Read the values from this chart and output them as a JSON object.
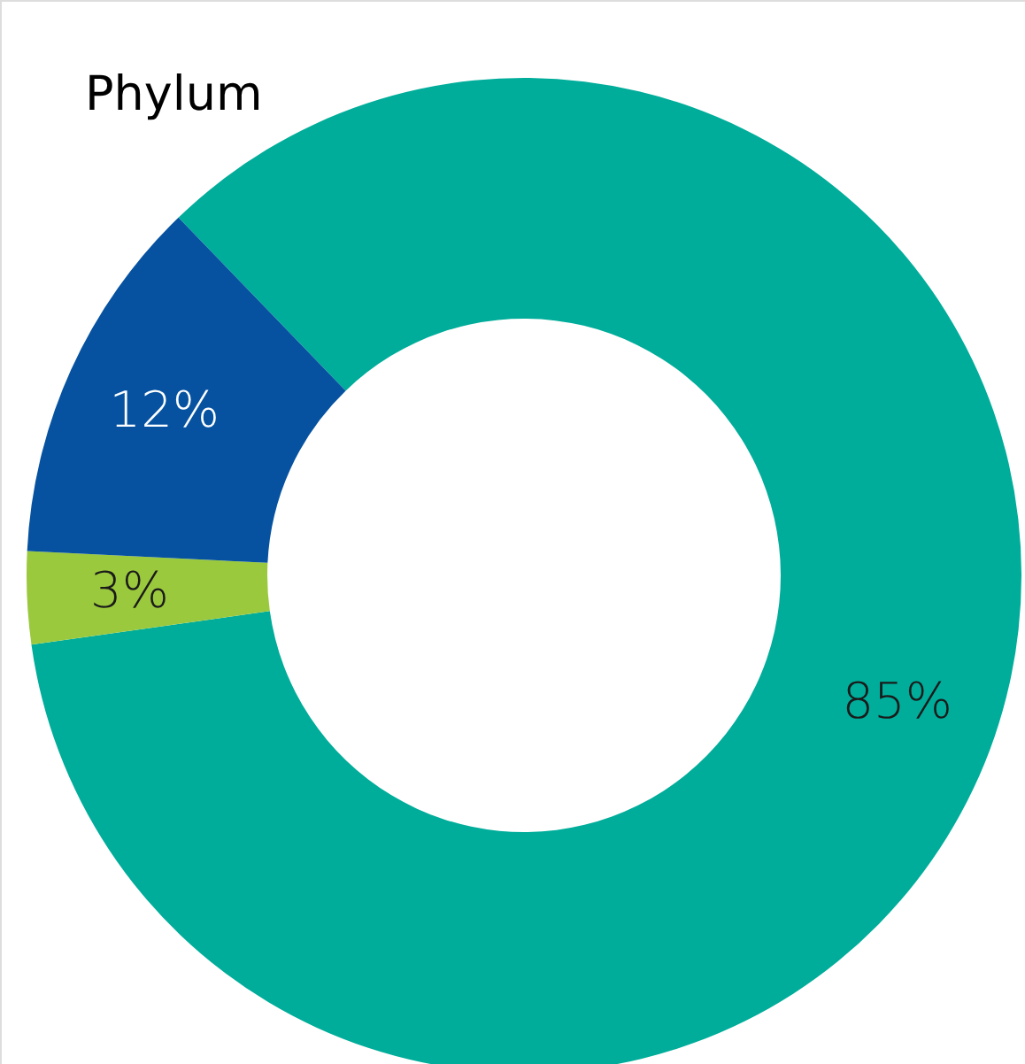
{
  "chart_data": {
    "type": "donut",
    "title": "Phylum",
    "categories": [
      null,
      null,
      null
    ],
    "values": [
      85,
      3,
      12
    ],
    "colors": [
      "#00ad9a",
      "#9bc93d",
      "#0652a0"
    ],
    "value_labels": [
      "85%",
      "3%",
      "12%"
    ],
    "legend": false
  }
}
